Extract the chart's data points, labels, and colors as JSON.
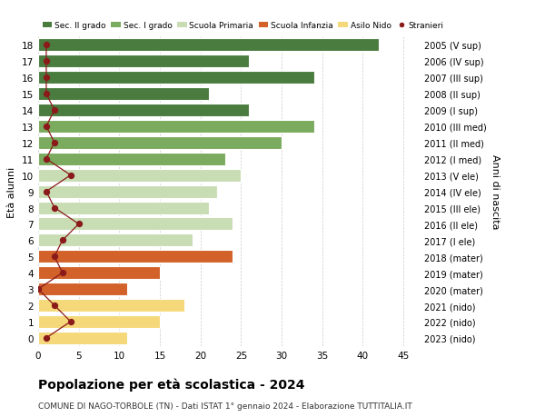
{
  "ages": [
    18,
    17,
    16,
    15,
    14,
    13,
    12,
    11,
    10,
    9,
    8,
    7,
    6,
    5,
    4,
    3,
    2,
    1,
    0
  ],
  "bar_values": [
    42,
    26,
    34,
    21,
    26,
    34,
    30,
    23,
    25,
    22,
    21,
    24,
    19,
    24,
    15,
    11,
    18,
    15,
    11
  ],
  "stranieri": [
    1,
    1,
    1,
    1,
    2,
    1,
    2,
    1,
    4,
    1,
    2,
    5,
    3,
    2,
    3,
    0,
    2,
    4,
    1
  ],
  "right_labels": [
    "2005 (V sup)",
    "2006 (IV sup)",
    "2007 (III sup)",
    "2008 (II sup)",
    "2009 (I sup)",
    "2010 (III med)",
    "2011 (II med)",
    "2012 (I med)",
    "2013 (V ele)",
    "2014 (IV ele)",
    "2015 (III ele)",
    "2016 (II ele)",
    "2017 (I ele)",
    "2018 (mater)",
    "2019 (mater)",
    "2020 (mater)",
    "2021 (nido)",
    "2022 (nido)",
    "2023 (nido)"
  ],
  "bar_colors": [
    "#4a7c3f",
    "#4a7c3f",
    "#4a7c3f",
    "#4a7c3f",
    "#4a7c3f",
    "#7aab5e",
    "#7aab5e",
    "#7aab5e",
    "#c8ddb4",
    "#c8ddb4",
    "#c8ddb4",
    "#c8ddb4",
    "#c8ddb4",
    "#d2622a",
    "#d2622a",
    "#d2622a",
    "#f5d87a",
    "#f5d87a",
    "#f5d87a"
  ],
  "legend_labels": [
    "Sec. II grado",
    "Sec. I grado",
    "Scuola Primaria",
    "Scuola Infanzia",
    "Asilo Nido",
    "Stranieri"
  ],
  "legend_colors": [
    "#4a7c3f",
    "#7aab5e",
    "#c8ddb4",
    "#d2622a",
    "#f5d87a",
    "#8b1a1a"
  ],
  "ylabel": "Età alunni",
  "right_ylabel": "Anni di nascita",
  "title": "Popolazione per età scolastica - 2024",
  "subtitle": "COMUNE DI NAGO-TORBOLE (TN) - Dati ISTAT 1° gennaio 2024 - Elaborazione TUTTITALIA.IT",
  "xlim": [
    0,
    47
  ],
  "background_color": "#ffffff",
  "grid_color": "#cccccc",
  "stranieri_color": "#8b1a1a",
  "stranieri_line_color": "#8b1a1a"
}
